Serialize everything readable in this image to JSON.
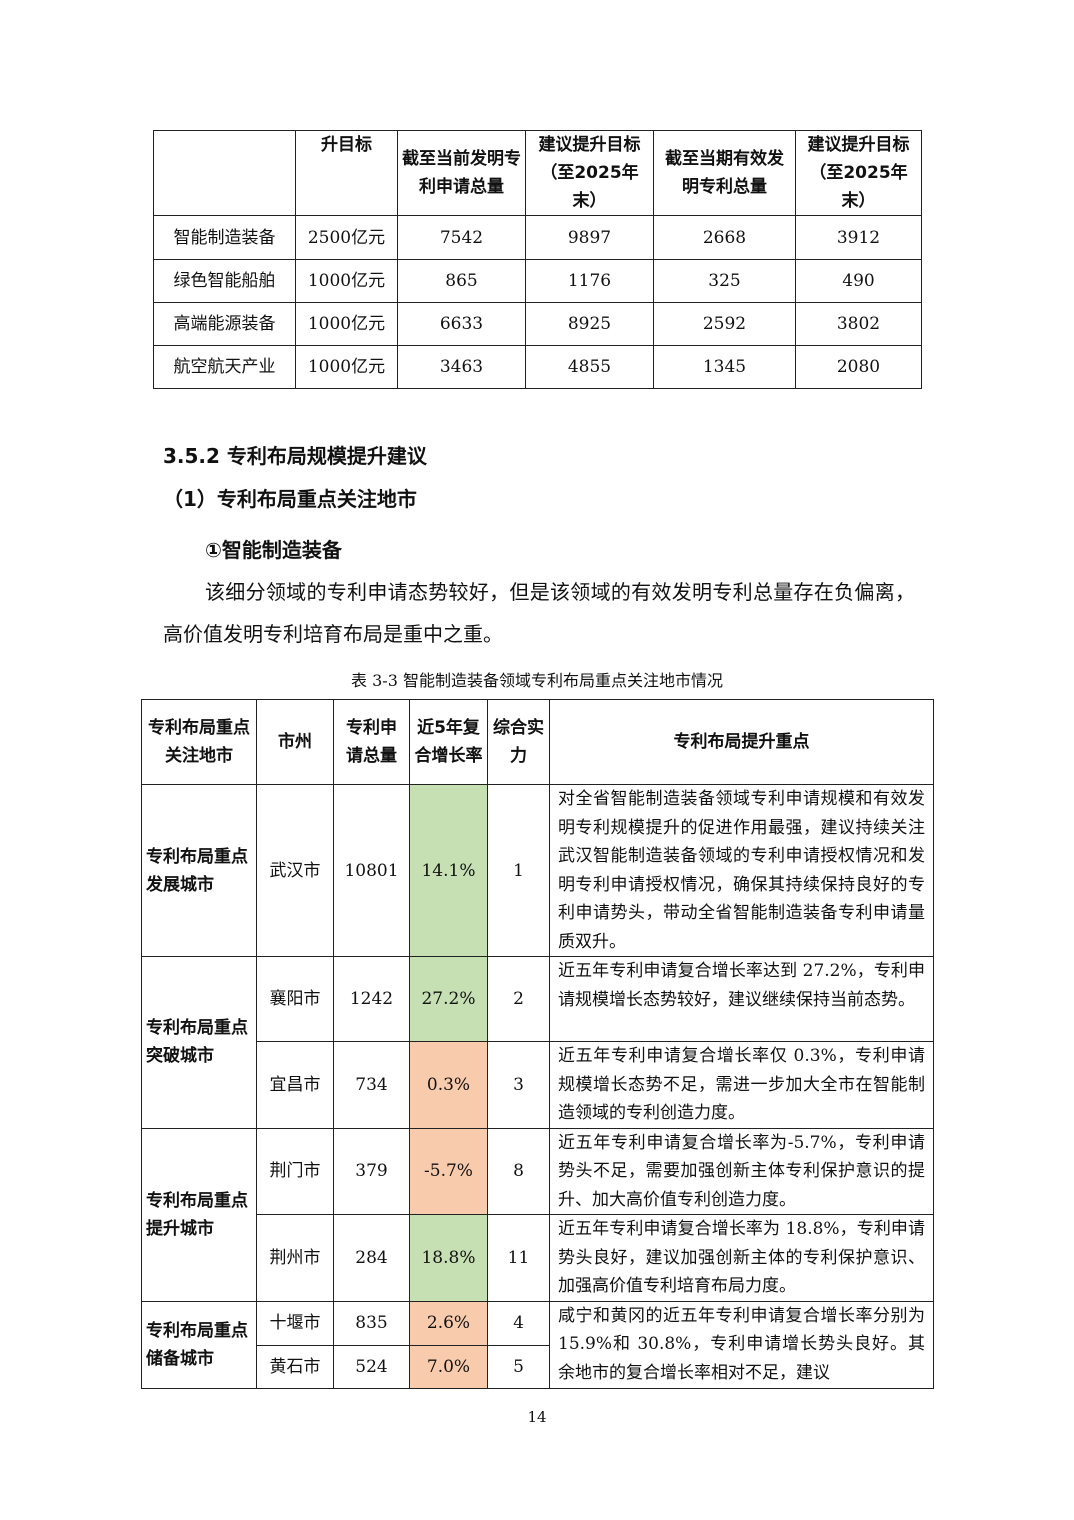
{
  "table1": {
    "headers": [
      "",
      "升目标",
      "截至当前发明专利申请总量",
      "建议提升目标（至2025年末）",
      "截至当期有效发明专利总量",
      "建议提升目标（至2025年末）"
    ],
    "rows": [
      [
        "智能制造装备",
        "2500亿元",
        "7542",
        "9897",
        "2668",
        "3912"
      ],
      [
        "绿色智能船舶",
        "1000亿元",
        "865",
        "1176",
        "325",
        "490"
      ],
      [
        "高端能源装备",
        "1000亿元",
        "6633",
        "8925",
        "2592",
        "3802"
      ],
      [
        "航空航天产业",
        "1000亿元",
        "3463",
        "4855",
        "1345",
        "2080"
      ]
    ]
  },
  "section_heading": "3.5.2  专利布局规模提升建议",
  "sub_heading": "（1）专利布局重点关注地市",
  "sub_sub_heading": "①智能制造装备",
  "paragraph": "该细分领域的专利申请态势较好，但是该领域的有效发明专利总量存在负偏离，高价值发明专利培育布局是重中之重。",
  "caption": "表 3-3  智能制造装备领域专利布局重点关注地市情况",
  "table2": {
    "headers": [
      "专利布局重点关注地市",
      "市州",
      "专利申请总量",
      "近5年复合增长率",
      "综合实力",
      "专利布局提升重点"
    ],
    "categories": [
      "专利布局重点发展城市",
      "专利布局重点突破城市",
      "专利布局重点提升城市",
      "专利布局重点储备城市"
    ],
    "rows": [
      {
        "city": "武汉市",
        "total": "10801",
        "rate": "14.1%",
        "rank": "1",
        "desc": "对全省智能制造装备领域专利申请规模和有效发明专利规模提升的促进作用最强，建议持续关注武汉智能制造装备领域的专利申请授权情况和发明专利申请授权情况，确保其持续保持良好的专利申请势头，带动全省智能制造装备专利申请量质双升。"
      },
      {
        "city": "襄阳市",
        "total": "1242",
        "rate": "27.2%",
        "rank": "2",
        "desc": "近五年专利申请复合增长率达到 27.2%，专利申请规模增长态势较好，建议继续保持当前态势。"
      },
      {
        "city": "宜昌市",
        "total": "734",
        "rate": "0.3%",
        "rank": "3",
        "desc": "近五年专利申请复合增长率仅 0.3%，专利申请规模增长态势不足，需进一步加大全市在智能制造领域的专利创造力度。"
      },
      {
        "city": "荆门市",
        "total": "379",
        "rate": "-5.7%",
        "rank": "8",
        "desc": "近五年专利申请复合增长率为-5.7%，专利申请势头不足，需要加强创新主体专利保护意识的提升、加大高价值专利创造力度。"
      },
      {
        "city": "荆州市",
        "total": "284",
        "rate": "18.8%",
        "rank": "11",
        "desc": "近五年专利申请复合增长率为 18.8%，专利申请势头良好，建议加强创新主体的专利保护意识、加强高价值专利培育布局力度。"
      },
      {
        "city": "十堰市",
        "total": "835",
        "rate": "2.6%",
        "rank": "4"
      },
      {
        "city": "黄石市",
        "total": "524",
        "rate": "7.0%",
        "rank": "5"
      }
    ],
    "reserve_desc": "咸宁和黄冈的近五年专利申请复合增长率分别为 15.9%和 30.8%，专利申请增长势头良好。其余地市的复合增长率相对不足，建议",
    "colors": {
      "positive": "#c6e0b4",
      "low": "#f8cbad"
    }
  },
  "page_number": "14"
}
